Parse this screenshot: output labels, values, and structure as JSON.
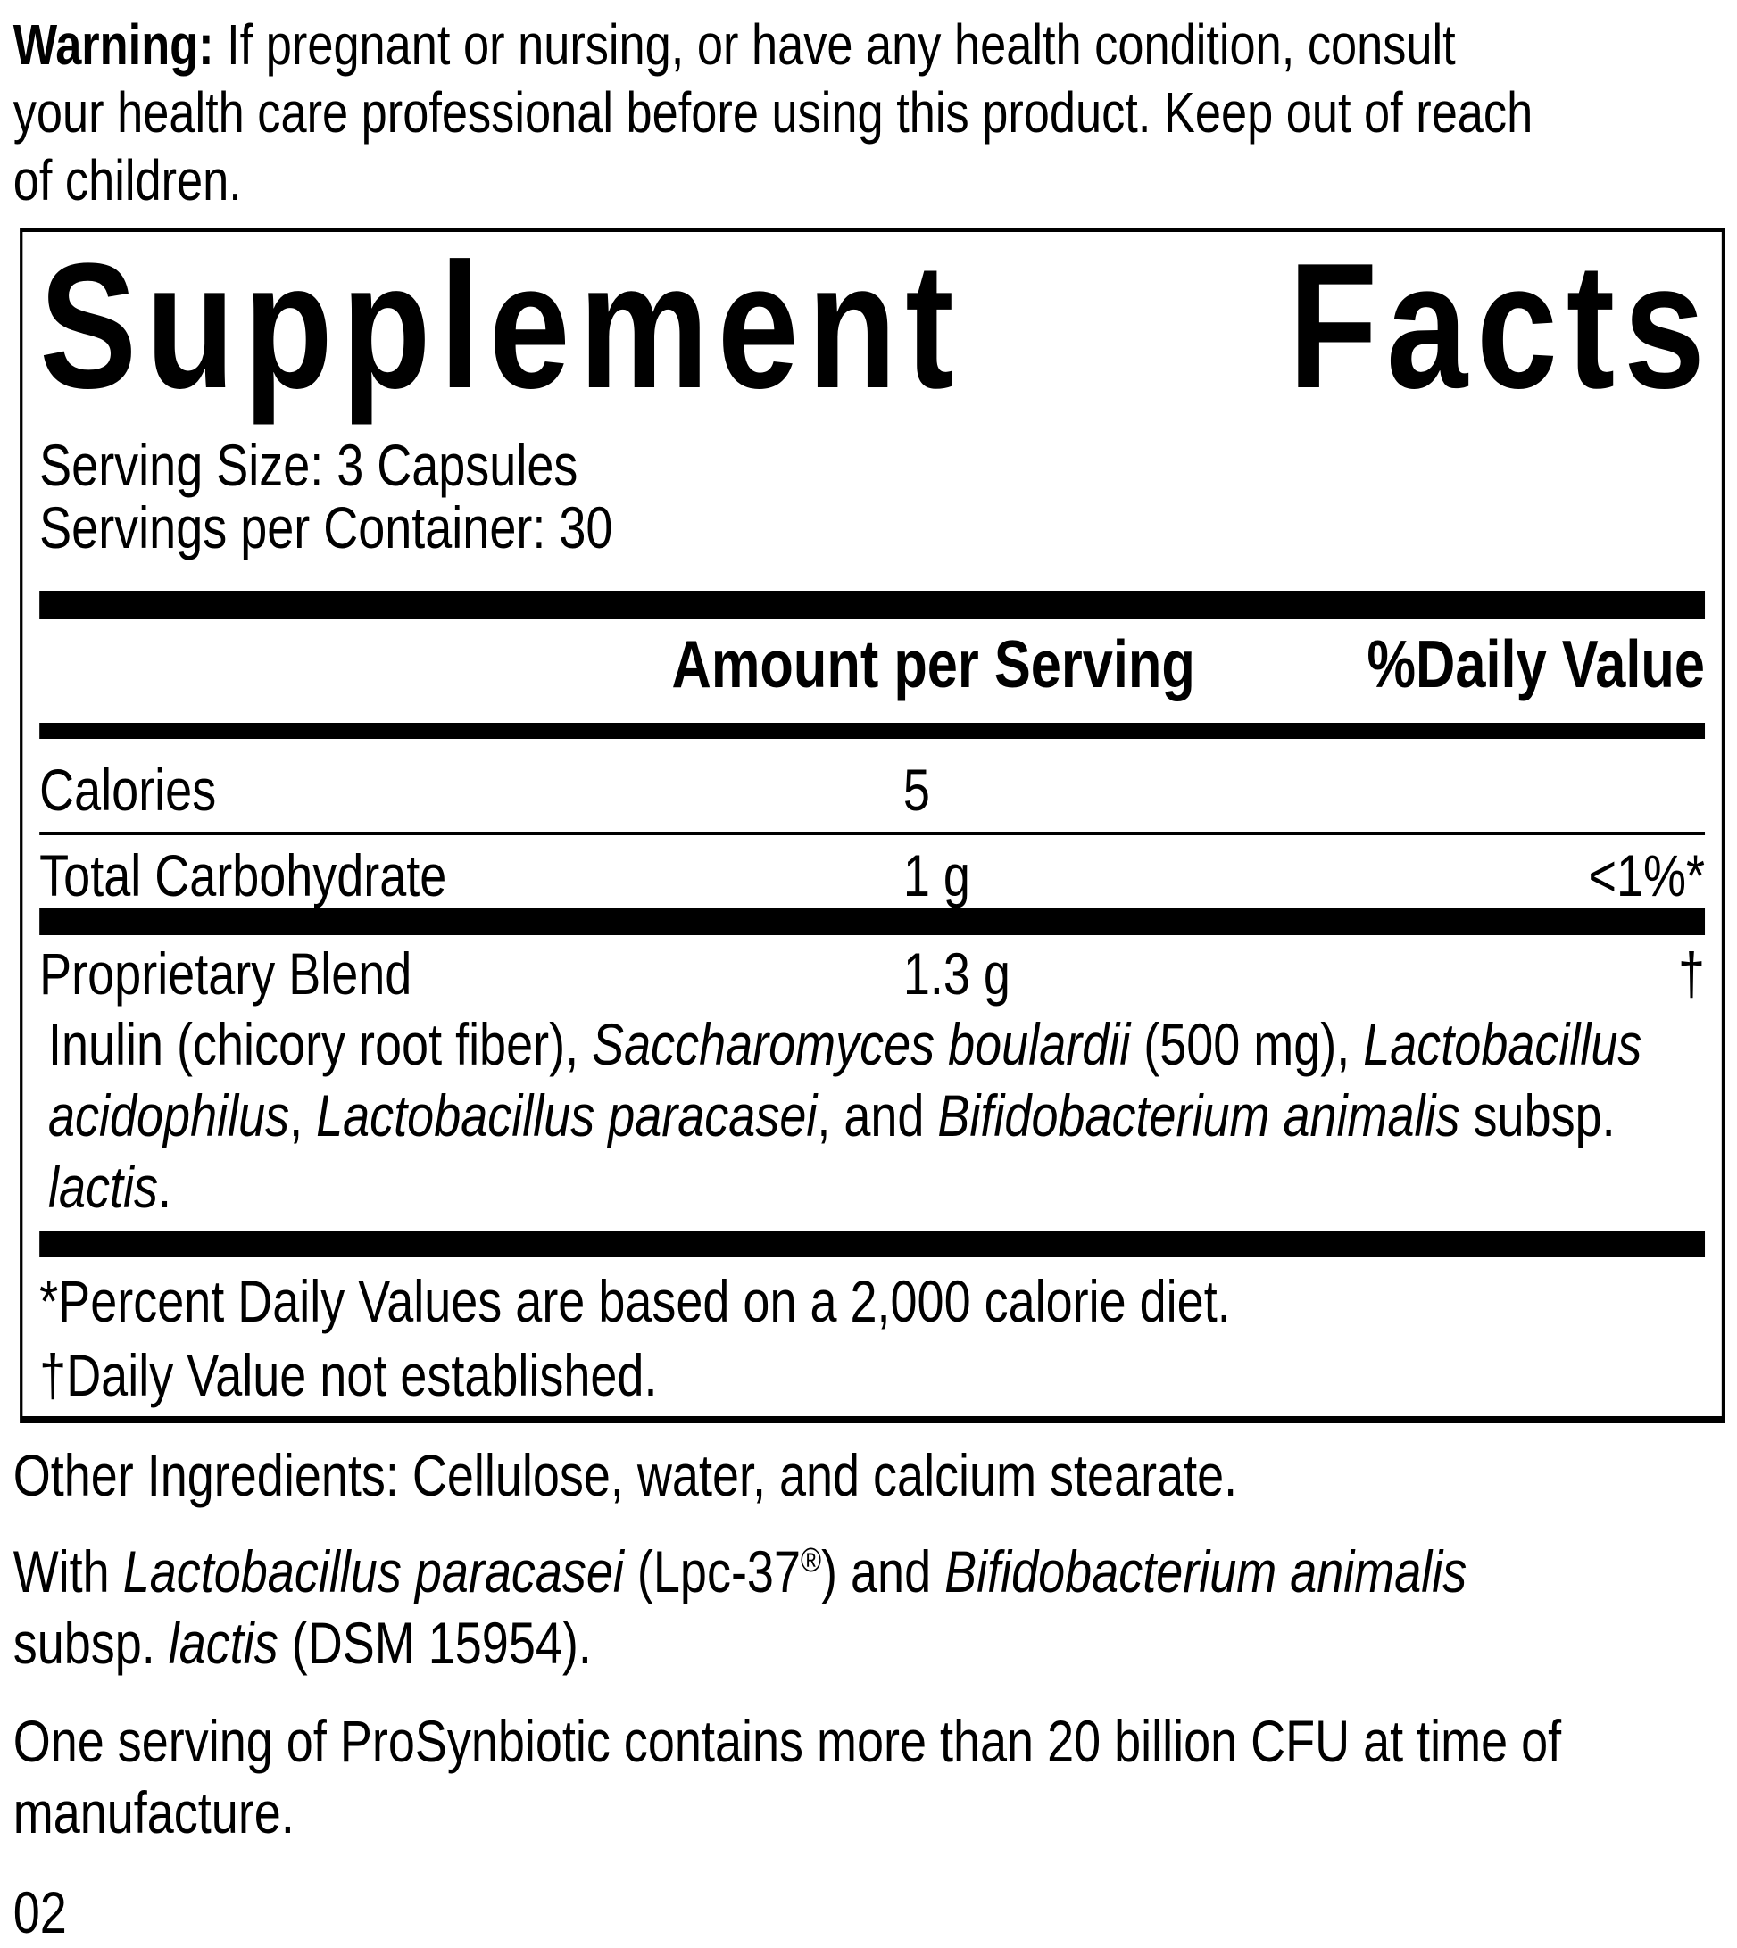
{
  "colors": {
    "text": "#000000",
    "background": "#ffffff",
    "bar": "#000000"
  },
  "warning": {
    "segments": [
      {
        "text": "Warning:",
        "style": "b"
      },
      {
        "text": " If pregnant or nursing, or have any health condition, consult"
      },
      {
        "br": true
      },
      {
        "text": "your health care professional before using this product. Keep out of reach"
      },
      {
        "br": true
      },
      {
        "text": "of children."
      }
    ]
  },
  "panel": {
    "title_left": "Supplement",
    "title_right": "Facts",
    "serving_size": "Serving Size: 3 Capsules",
    "servings_per_container": "Servings per Container: 30",
    "columns": {
      "amount": "Amount per Serving",
      "daily_value": "%Daily Value"
    },
    "rows": [
      {
        "name": "Calories",
        "amount": "5",
        "daily_value": ""
      },
      {
        "name": "Total Carbohydrate",
        "amount": "1 g",
        "daily_value": "<1%*"
      },
      {
        "name": "Proprietary Blend",
        "amount": "1.3 g",
        "daily_value": "†"
      }
    ],
    "blend_description": {
      "segments": [
        {
          "text": "Inulin (chicory root fiber), "
        },
        {
          "text": "Saccharomyces boulardii",
          "style": "i"
        },
        {
          "text": " (500 mg), "
        },
        {
          "text": "Lactobacillus",
          "style": "i"
        },
        {
          "br": true
        },
        {
          "text": "acidophilus",
          "style": "i"
        },
        {
          "text": ", "
        },
        {
          "text": "Lactobacillus paracasei",
          "style": "i"
        },
        {
          "text": ", and "
        },
        {
          "text": "Bifidobacterium animalis",
          "style": "i"
        },
        {
          "text": " subsp."
        },
        {
          "br": true
        },
        {
          "text": "lactis",
          "style": "i"
        },
        {
          "text": "."
        }
      ]
    },
    "footnotes": [
      "*Percent Daily Values are based on a 2,000 calorie diet.",
      "†Daily Value not established."
    ]
  },
  "other_ingredients": "Other Ingredients: Cellulose, water, and calcium stearate.",
  "strain_note": {
    "segments": [
      {
        "text": "With "
      },
      {
        "text": "Lactobacillus paracasei",
        "style": "i"
      },
      {
        "text": " (Lpc-37"
      },
      {
        "text": "®",
        "style": "sup"
      },
      {
        "text": ") and "
      },
      {
        "text": "Bifidobacterium animalis",
        "style": "i"
      },
      {
        "br": true
      },
      {
        "text": "subsp. "
      },
      {
        "text": "lactis",
        "style": "i"
      },
      {
        "text": " (DSM 15954)."
      }
    ]
  },
  "cfu_note": {
    "segments": [
      {
        "text": "One serving of ProSynbiotic contains more than 20 billion CFU at time of"
      },
      {
        "br": true
      },
      {
        "text": "manufacture."
      }
    ]
  },
  "page_code": "02"
}
